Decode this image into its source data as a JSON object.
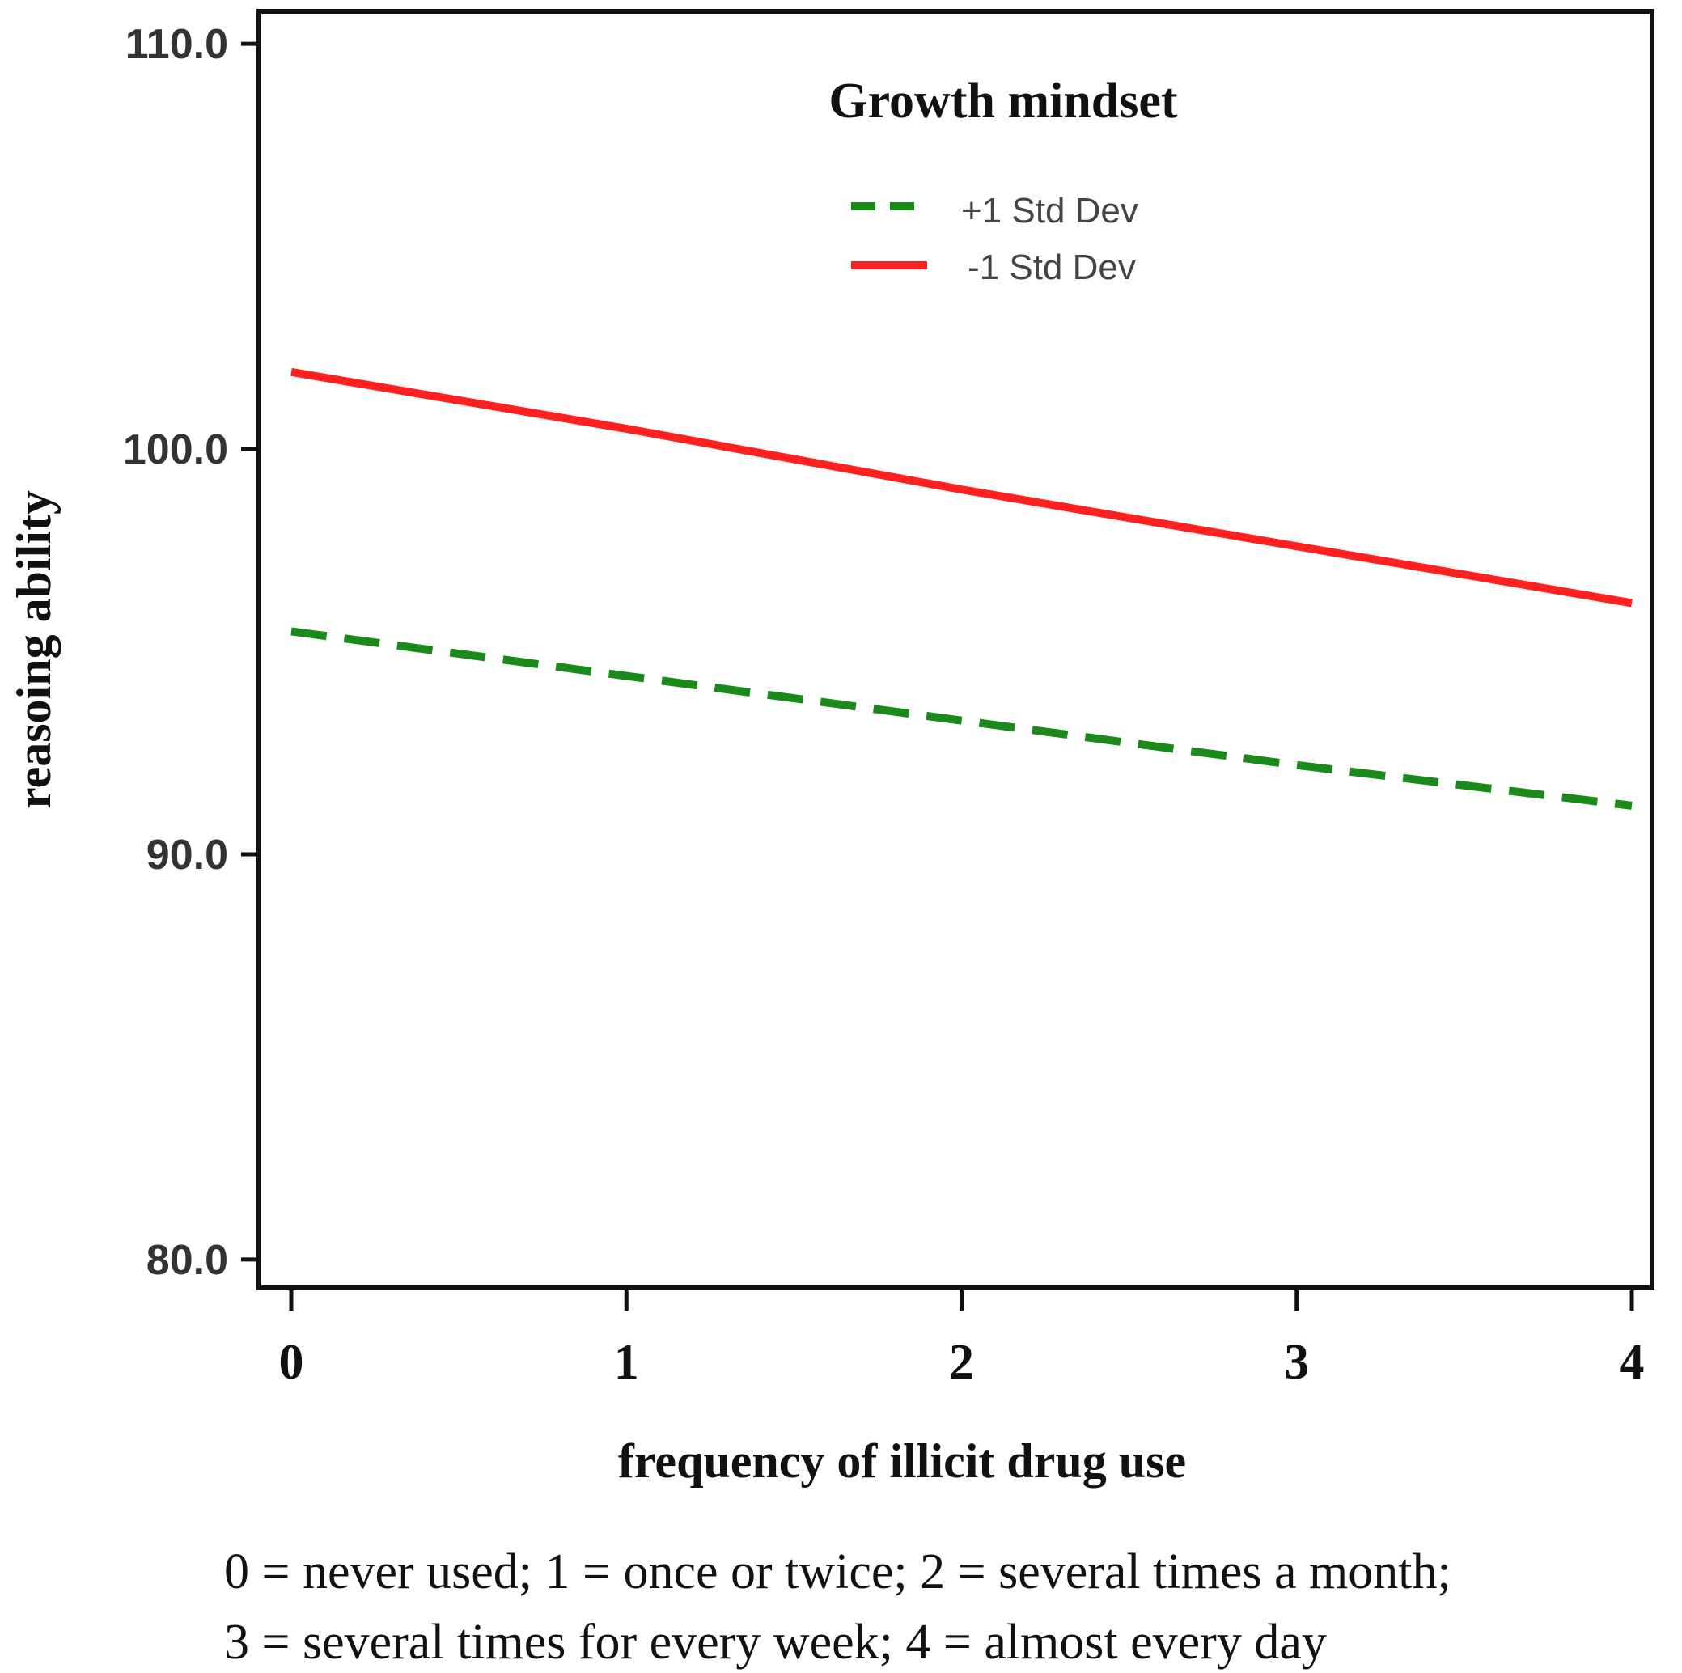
{
  "chart_data": {
    "type": "line",
    "x": [
      0,
      1,
      2,
      3,
      4
    ],
    "xticks": [
      "0",
      "1",
      "2",
      "3",
      "4"
    ],
    "xlim": [
      0,
      4
    ],
    "yticks": [
      "80.0",
      "90.0",
      "100.0",
      "110.0"
    ],
    "ytick_values": [
      80,
      90,
      100,
      110
    ],
    "ylim": [
      79.3,
      110.8
    ],
    "xlabel": "frequency of illicit drug use",
    "ylabel": "reasoing ability",
    "legend_title": "Growth  mindset",
    "legend_position": "top-center",
    "series": [
      {
        "name": "+1 Std Dev",
        "style": "dashed",
        "color": "#1a8a1a",
        "values": [
          95.5,
          94.4,
          93.3,
          92.2,
          91.2
        ]
      },
      {
        "name": "-1 Std Dev",
        "style": "solid",
        "color": "#ff2020",
        "values": [
          101.9,
          100.5,
          99.0,
          97.6,
          96.2
        ]
      }
    ],
    "grid": false
  },
  "note": {
    "line1": "0 = never used; 1 = once or twice; 2 = several times a month;",
    "line2": "3 = several times for every week; 4 = almost every day"
  }
}
